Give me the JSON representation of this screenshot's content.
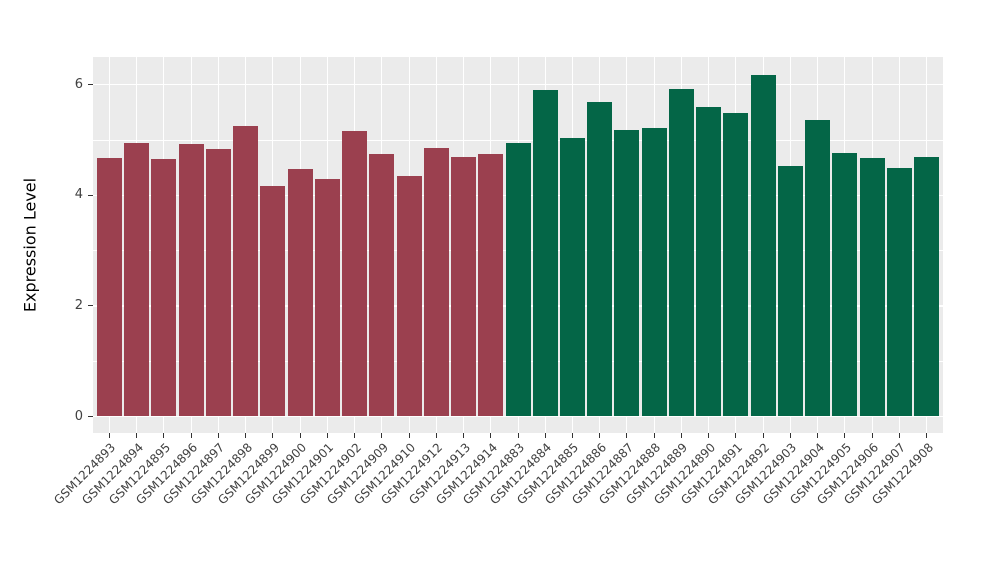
{
  "figure": {
    "background": "#FFFFFF",
    "panel_background": "#EBEBEB",
    "gridline_color": "#FFFFFF",
    "tick_mark_color": "#333333",
    "axis_text_color": "#404040",
    "axis_title_color": "#000000"
  },
  "chart_data": {
    "type": "bar",
    "title": "",
    "xlabel": "",
    "ylabel": "Expression Level",
    "ylim": [
      0,
      6.5
    ],
    "yticks": [
      0,
      2,
      4,
      6
    ],
    "grid": true,
    "legend_position": "none",
    "x_label_angle_deg": 45,
    "series": [
      {
        "name": "group-maroon",
        "color": "#9B404F",
        "categories": [
          "GSM1224893",
          "GSM1224894",
          "GSM1224895",
          "GSM1224896",
          "GSM1224897",
          "GSM1224898",
          "GSM1224899",
          "GSM1224900",
          "GSM1224901",
          "GSM1224902",
          "GSM1224909",
          "GSM1224910",
          "GSM1224912",
          "GSM1224913",
          "GSM1224914"
        ],
        "values": [
          4.68,
          4.95,
          4.66,
          4.93,
          4.84,
          5.25,
          4.16,
          4.47,
          4.29,
          5.17,
          4.74,
          4.35,
          4.85,
          4.69,
          4.74
        ]
      },
      {
        "name": "group-green",
        "color": "#046647",
        "categories": [
          "GSM1224883",
          "GSM1224884",
          "GSM1224885",
          "GSM1224886",
          "GSM1224887",
          "GSM1224888",
          "GSM1224889",
          "GSM1224890",
          "GSM1224891",
          "GSM1224892",
          "GSM1224903",
          "GSM1224904",
          "GSM1224905",
          "GSM1224906",
          "GSM1224907",
          "GSM1224908"
        ],
        "values": [
          4.95,
          5.91,
          5.03,
          5.69,
          5.18,
          5.21,
          5.93,
          5.59,
          5.48,
          6.18,
          4.53,
          5.37,
          4.76,
          4.68,
          4.5,
          4.7
        ]
      }
    ]
  }
}
